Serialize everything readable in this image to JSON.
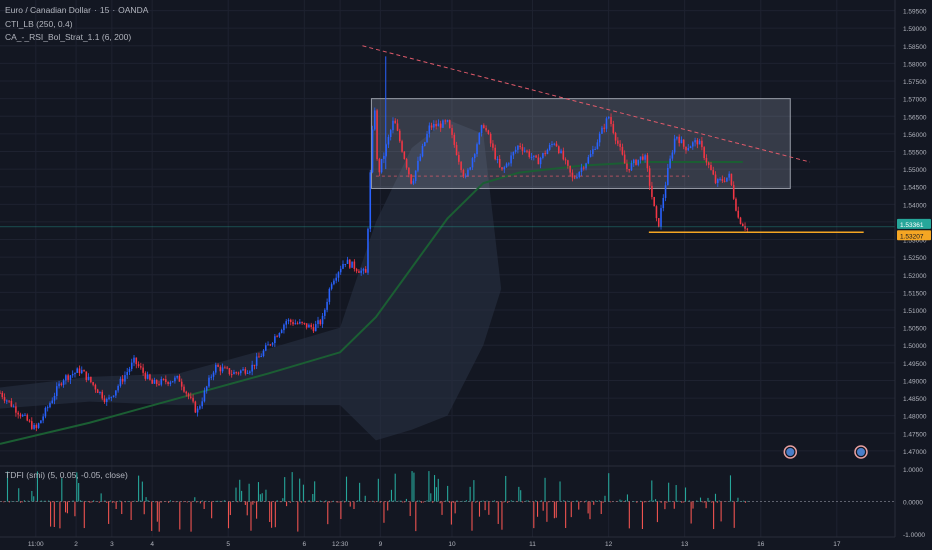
{
  "header": {
    "symbol": "Euro / Canadian Dollar",
    "interval": "15",
    "broker": "OANDA",
    "indicator_1": "CTI_LB (250, 0.4)",
    "indicator_2": "CA_-_RSI_Bol_Strat_1.1 (6, 200)"
  },
  "oscillator": {
    "label": "TDFI (smi) (5, 0.05, -0.05, close)"
  },
  "colors": {
    "background": "#131722",
    "grid": "#1e2230",
    "up": "#2962ff",
    "down": "#f23645",
    "ma": "#1b5e33",
    "band": "#2a3345",
    "level": "#f5a623",
    "last_price": "#26a69a",
    "osc_up": "#26a69a",
    "osc_down": "#ef5350"
  },
  "chart_data": [
    {
      "type": "candlestick",
      "title": "",
      "y_ticks": [
        1.595,
        1.59,
        1.585,
        1.58,
        1.575,
        1.57,
        1.565,
        1.56,
        1.555,
        1.55,
        1.545,
        1.54,
        1.535,
        1.53,
        1.525,
        1.52,
        1.515,
        1.51,
        1.505,
        1.5,
        1.495,
        1.49,
        1.485,
        1.48,
        1.475,
        1.47
      ],
      "ylim": [
        1.466,
        1.598
      ],
      "x_ticks": [
        "11:00",
        "2",
        "3",
        "4",
        "5",
        "6",
        "12:30",
        "9",
        "10",
        "11",
        "12",
        "13",
        "16",
        "17"
      ],
      "grid": true,
      "price_path": [
        [
          0,
          1.4865
        ],
        [
          0.04,
          1.476
        ],
        [
          0.07,
          1.4905
        ],
        [
          0.09,
          1.493
        ],
        [
          0.12,
          1.484
        ],
        [
          0.15,
          1.4955
        ],
        [
          0.17,
          1.489
        ],
        [
          0.2,
          1.4905
        ],
        [
          0.22,
          1.481
        ],
        [
          0.24,
          1.494
        ],
        [
          0.26,
          1.492
        ],
        [
          0.28,
          1.4935
        ],
        [
          0.3,
          1.5
        ],
        [
          0.32,
          1.507
        ],
        [
          0.35,
          1.505
        ],
        [
          0.36,
          1.507
        ],
        [
          0.37,
          1.518
        ],
        [
          0.385,
          1.524
        ],
        [
          0.41,
          1.52
        ],
        [
          0.412,
          1.544
        ],
        [
          0.415,
          1.552
        ],
        [
          0.418,
          1.572
        ],
        [
          0.422,
          1.548
        ],
        [
          0.44,
          1.564
        ],
        [
          0.46,
          1.546
        ],
        [
          0.48,
          1.562
        ],
        [
          0.5,
          1.563
        ],
        [
          0.52,
          1.547
        ],
        [
          0.54,
          1.563
        ],
        [
          0.56,
          1.549
        ],
        [
          0.58,
          1.557
        ],
        [
          0.6,
          1.552
        ],
        [
          0.62,
          1.558
        ],
        [
          0.64,
          1.547
        ],
        [
          0.66,
          1.554
        ],
        [
          0.68,
          1.565
        ],
        [
          0.7,
          1.55
        ],
        [
          0.72,
          1.554
        ],
        [
          0.73,
          1.54
        ],
        [
          0.735,
          1.533
        ],
        [
          0.745,
          1.548
        ],
        [
          0.755,
          1.56
        ],
        [
          0.765,
          1.556
        ],
        [
          0.78,
          1.558
        ],
        [
          0.8,
          1.546
        ],
        [
          0.815,
          1.548
        ],
        [
          0.825,
          1.536
        ],
        [
          0.835,
          1.533
        ]
      ],
      "ma_path": [
        [
          0,
          1.472
        ],
        [
          0.1,
          1.478
        ],
        [
          0.2,
          1.485
        ],
        [
          0.3,
          1.492
        ],
        [
          0.38,
          1.498
        ],
        [
          0.42,
          1.508
        ],
        [
          0.46,
          1.522
        ],
        [
          0.5,
          1.536
        ],
        [
          0.54,
          1.546
        ],
        [
          0.58,
          1.549
        ],
        [
          0.65,
          1.551
        ],
        [
          0.72,
          1.552
        ],
        [
          0.78,
          1.552
        ],
        [
          0.83,
          1.552
        ]
      ],
      "band_upper": [
        [
          0,
          1.488
        ],
        [
          0.1,
          1.491
        ],
        [
          0.2,
          1.492
        ],
        [
          0.3,
          1.499
        ],
        [
          0.38,
          1.505
        ],
        [
          0.42,
          1.535
        ],
        [
          0.46,
          1.556
        ],
        [
          0.5,
          1.564
        ],
        [
          0.54,
          1.56
        ]
      ],
      "band_lower": [
        [
          0,
          1.482
        ],
        [
          0.1,
          1.484
        ],
        [
          0.2,
          1.483
        ],
        [
          0.3,
          1.483
        ],
        [
          0.38,
          1.483
        ],
        [
          0.42,
          1.473
        ],
        [
          0.46,
          1.476
        ],
        [
          0.5,
          1.48
        ],
        [
          0.54,
          1.5
        ],
        [
          0.56,
          1.516
        ]
      ],
      "consolidation_box": {
        "x_start": 0.415,
        "x_end": 0.883,
        "y_top": 1.57,
        "y_bottom": 1.5445
      },
      "trendline": {
        "x1": 0.405,
        "y1": 1.585,
        "x2": 0.905,
        "y2": 1.552
      },
      "mid_line": {
        "x1": 0.42,
        "y1": 1.548,
        "x2": 0.77,
        "y2": 1.548
      },
      "horizontal_level": {
        "x1": 0.725,
        "x2": 0.965,
        "y": 1.53207
      },
      "price_labels": [
        {
          "text": "1.53361",
          "y": 1.53361,
          "kind": "last"
        },
        {
          "text": "1.53207",
          "y": 1.53207,
          "kind": "level"
        }
      ],
      "event_markers_x": [
        0.883,
        0.962
      ]
    },
    {
      "type": "oscillator",
      "y_ticks": [
        "1.0000",
        "0.0000",
        "-1.0000"
      ],
      "ylim": [
        -1.1,
        1.1
      ],
      "zero_line": 0
    }
  ]
}
